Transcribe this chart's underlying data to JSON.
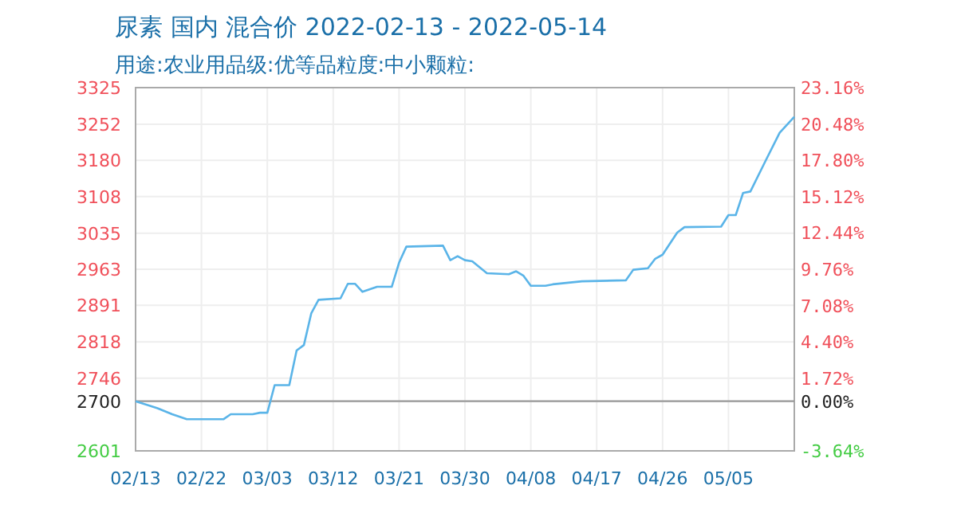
{
  "chart_data": {
    "type": "line",
    "title": "尿素 国内 混合价 2022-02-13 - 2022-05-14",
    "subtitle": "用途:农业用品级:优等品粒度:中小颗粒:",
    "x": [
      "2022-02-13",
      "2022-02-16",
      "2022-02-18",
      "2022-02-20",
      "2022-02-25",
      "2022-02-26",
      "2022-03-01",
      "2022-03-02",
      "2022-03-03",
      "2022-03-04",
      "2022-03-06",
      "2022-03-07",
      "2022-03-08",
      "2022-03-09",
      "2022-03-10",
      "2022-03-13",
      "2022-03-14",
      "2022-03-15",
      "2022-03-16",
      "2022-03-18",
      "2022-03-20",
      "2022-03-21",
      "2022-03-22",
      "2022-03-27",
      "2022-03-28",
      "2022-03-29",
      "2022-03-30",
      "2022-03-31",
      "2022-04-02",
      "2022-04-05",
      "2022-04-06",
      "2022-04-07",
      "2022-04-08",
      "2022-04-10",
      "2022-04-11",
      "2022-04-15",
      "2022-04-21",
      "2022-04-22",
      "2022-04-24",
      "2022-04-25",
      "2022-04-26",
      "2022-04-28",
      "2022-04-29",
      "2022-05-04",
      "2022-05-05",
      "2022-05-06",
      "2022-05-07",
      "2022-05-08",
      "2022-05-10",
      "2022-05-12",
      "2022-05-14"
    ],
    "series": [
      {
        "color": "#5ab4e8",
        "values": [
          2700,
          2686,
          2674,
          2664,
          2664,
          2674,
          2674,
          2677,
          2677,
          2732,
          2732,
          2801,
          2812,
          2875,
          2902,
          2905,
          2934,
          2934,
          2918,
          2928,
          2928,
          2976,
          3008,
          3010,
          2981,
          2989,
          2981,
          2979,
          2955,
          2953,
          2959,
          2950,
          2930,
          2930,
          2933,
          2939,
          2941,
          2962,
          2965,
          2984,
          2992,
          3036,
          3047,
          3048,
          3071,
          3071,
          3115,
          3118,
          3177,
          3235,
          3267
        ]
      }
    ],
    "xlim": [
      "2022-02-13",
      "2022-05-14"
    ],
    "xticks": [
      {
        "value": "2022-02-13",
        "label": "02/13"
      },
      {
        "value": "2022-02-22",
        "label": "02/22"
      },
      {
        "value": "2022-03-03",
        "label": "03/03"
      },
      {
        "value": "2022-03-12",
        "label": "03/12"
      },
      {
        "value": "2022-03-21",
        "label": "03/21"
      },
      {
        "value": "2022-03-30",
        "label": "03/30"
      },
      {
        "value": "2022-04-08",
        "label": "04/08"
      },
      {
        "value": "2022-04-17",
        "label": "04/17"
      },
      {
        "value": "2022-04-26",
        "label": "04/26"
      },
      {
        "value": "2022-05-05",
        "label": "05/05"
      }
    ],
    "ylim": [
      2601,
      3325
    ],
    "yticks": [
      2601,
      2700,
      2746,
      2818,
      2891,
      2963,
      3035,
      3108,
      3180,
      3252,
      3325
    ],
    "y2lim": [
      -3.64,
      23.16
    ],
    "y2ticks": [
      {
        "value": -3.64,
        "label": "-3.64%"
      },
      {
        "value": 0,
        "label": "0.00%"
      },
      {
        "value": 1.72,
        "label": "1.72%"
      },
      {
        "value": 4.4,
        "label": "4.40%"
      },
      {
        "value": 7.08,
        "label": "7.08%"
      },
      {
        "value": 9.76,
        "label": "9.76%"
      },
      {
        "value": 12.44,
        "label": "12.44%"
      },
      {
        "value": 15.12,
        "label": "15.12%"
      },
      {
        "value": 17.8,
        "label": "17.80%"
      },
      {
        "value": 20.48,
        "label": "20.48%"
      },
      {
        "value": 23.16,
        "label": "23.16%"
      }
    ],
    "ref_lines": [
      {
        "axis": "y",
        "value": 2700,
        "color": "#999999"
      }
    ],
    "grid": true,
    "marker": "none",
    "line_style": "solid"
  }
}
